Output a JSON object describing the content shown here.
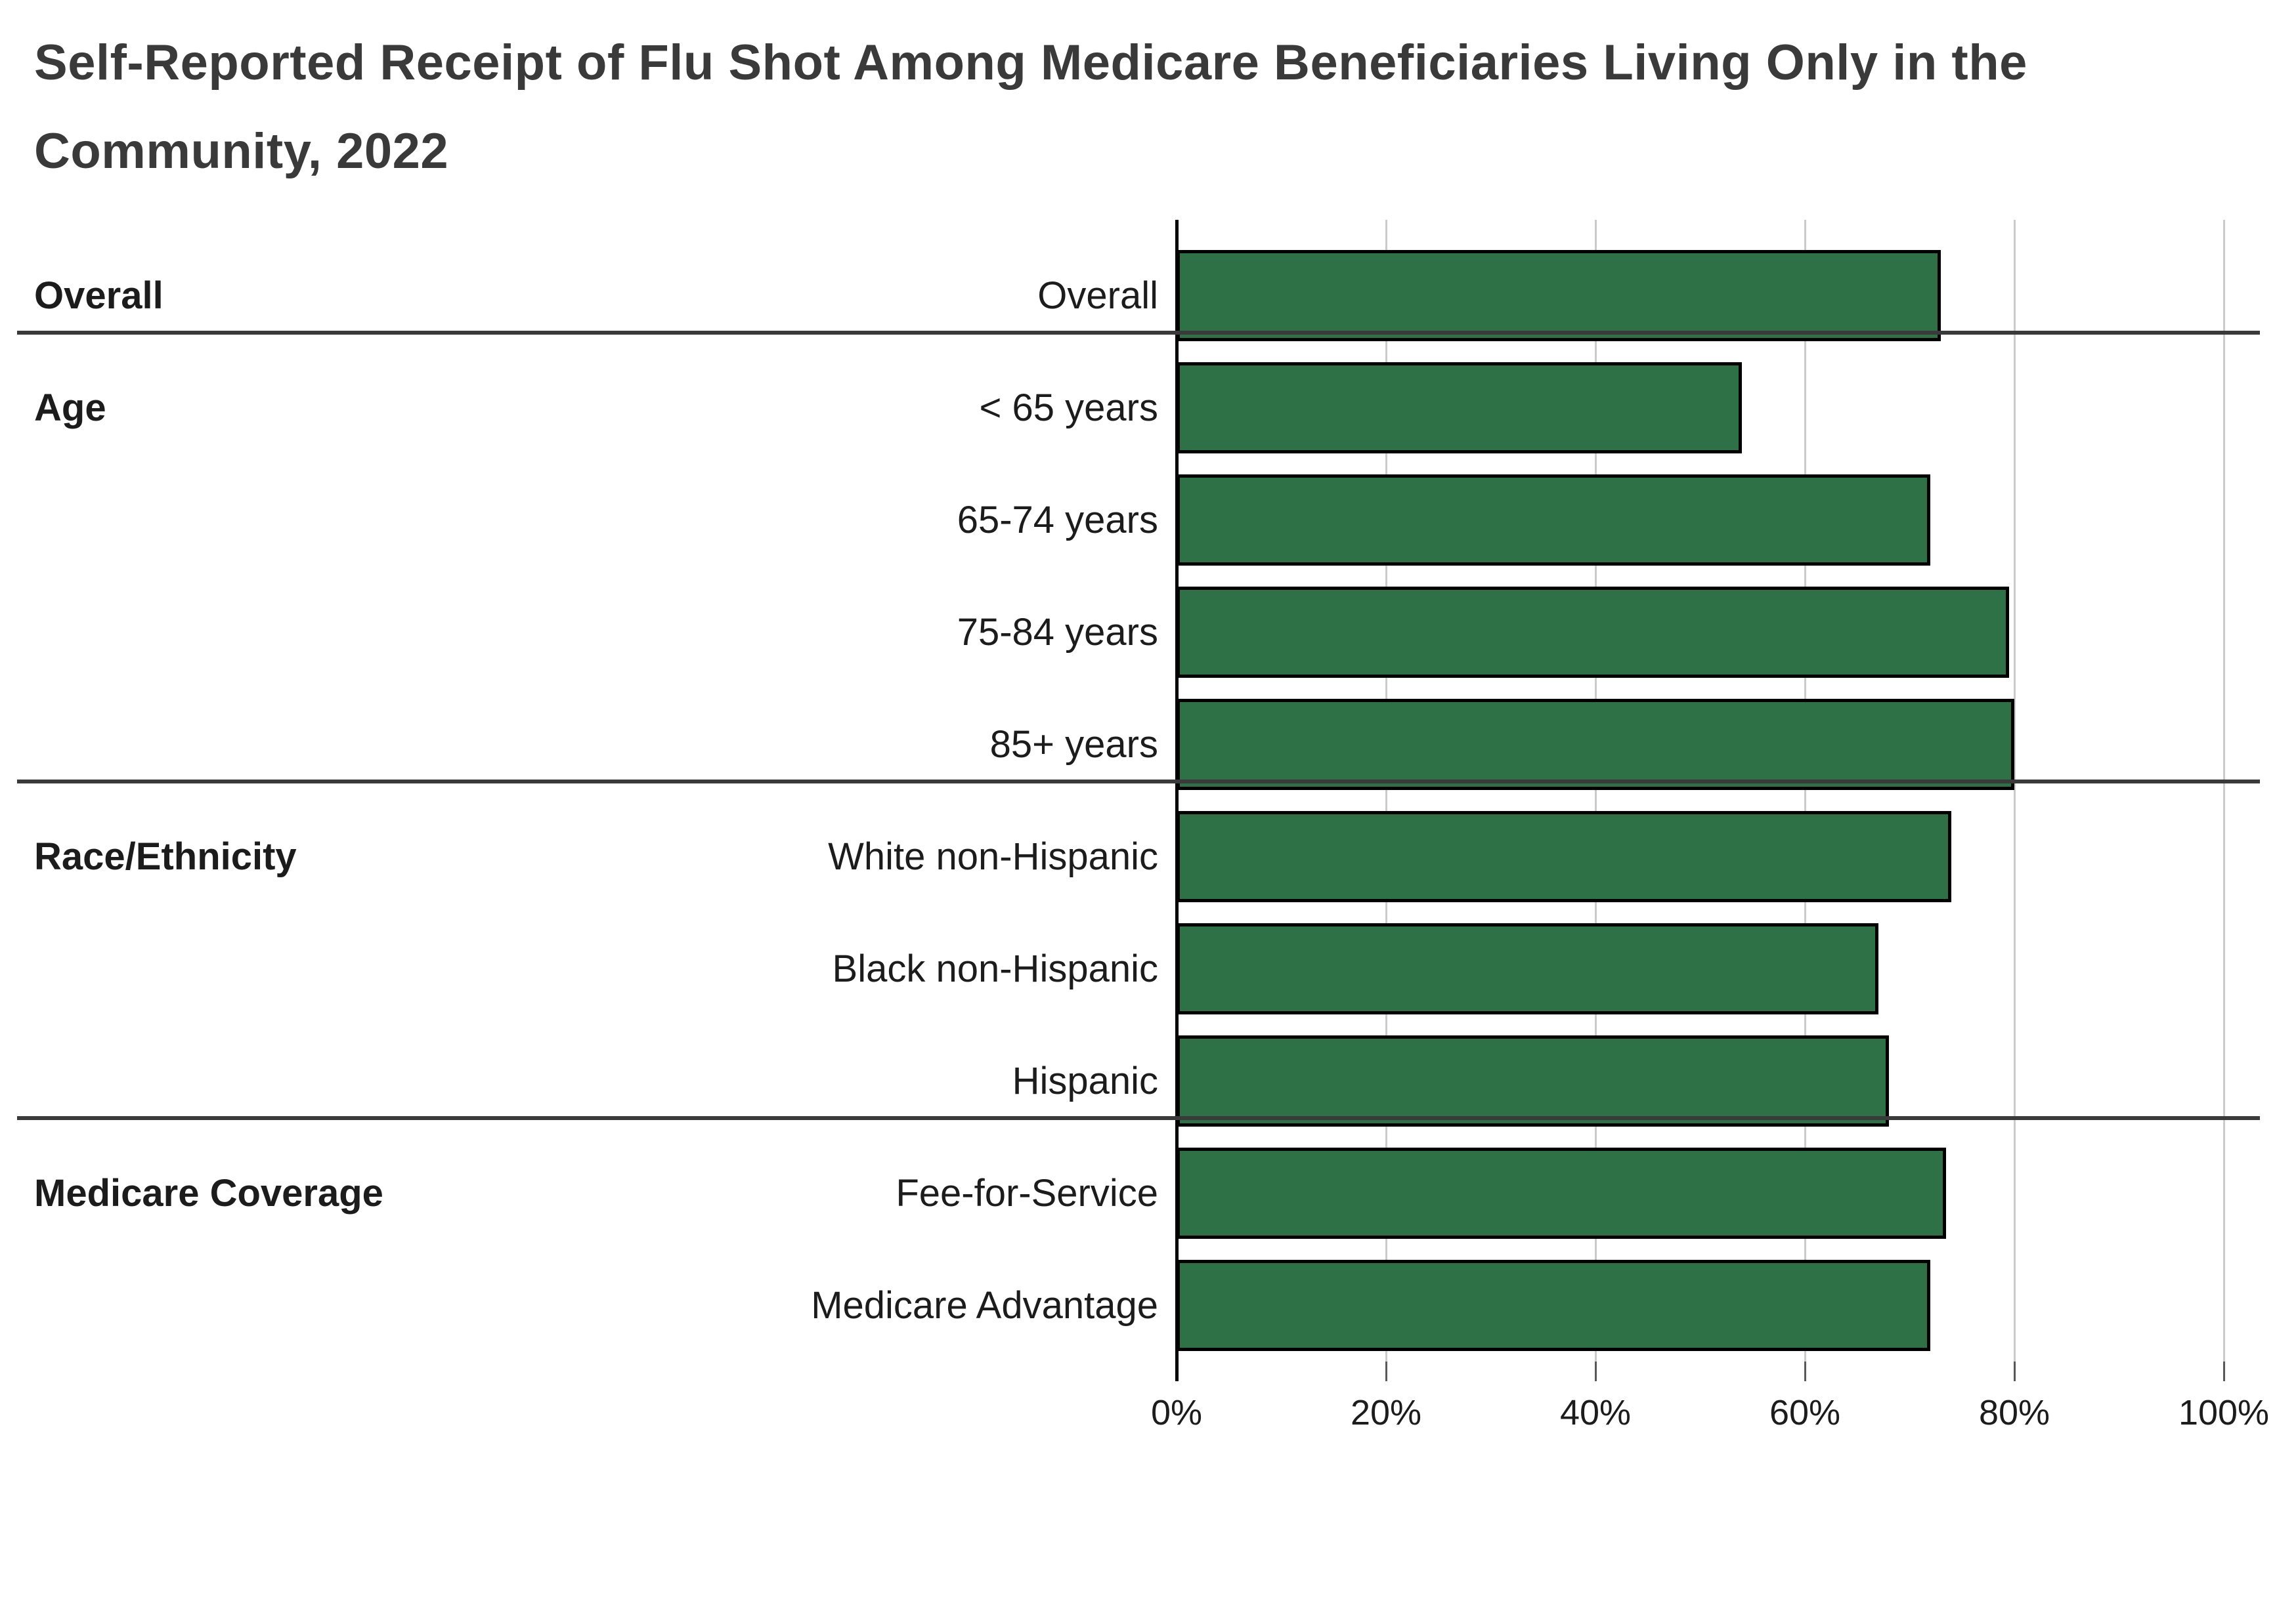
{
  "title_lines": [
    "Self-Reported Receipt of Flu Shot Among Medicare Beneficiaries Living Only in the",
    "Community, 2022"
  ],
  "colors": {
    "bar_fill": "#2F7146",
    "bar_border": "#000000",
    "grid": "#cbcbcb",
    "axis": "#000000",
    "separator": "#3a3a3a",
    "title_text": "#3a3a3a",
    "label_text": "#1c1c1c"
  },
  "chart_data": {
    "type": "bar",
    "orientation": "horizontal",
    "title": "Self-Reported Receipt of Flu Shot Among Medicare Beneficiaries Living Only in the Community, 2022",
    "xlabel": "",
    "ylabel": "",
    "xlim": [
      0,
      100
    ],
    "x_tick_values": [
      0,
      20,
      40,
      60,
      80,
      100
    ],
    "x_tick_labels": [
      "0%",
      "20%",
      "40%",
      "60%",
      "80%",
      "100%"
    ],
    "grid": true,
    "legend": "none",
    "unit": "percent",
    "groups": [
      {
        "label": "Overall",
        "rows": [
          {
            "label": "Overall",
            "value": 73
          }
        ]
      },
      {
        "label": "Age",
        "rows": [
          {
            "label": "< 65 years",
            "value": 54
          },
          {
            "label": "65-74 years",
            "value": 72
          },
          {
            "label": "75-84 years",
            "value": 79.5
          },
          {
            "label": "85+ years",
            "value": 80
          }
        ]
      },
      {
        "label": "Race/Ethnicity",
        "rows": [
          {
            "label": "White non-Hispanic",
            "value": 74
          },
          {
            "label": "Black non-Hispanic",
            "value": 67
          },
          {
            "label": "Hispanic",
            "value": 68
          }
        ]
      },
      {
        "label": "Medicare Coverage",
        "rows": [
          {
            "label": "Fee-for-Service",
            "value": 73.5
          },
          {
            "label": "Medicare Advantage",
            "value": 72
          }
        ]
      }
    ]
  }
}
